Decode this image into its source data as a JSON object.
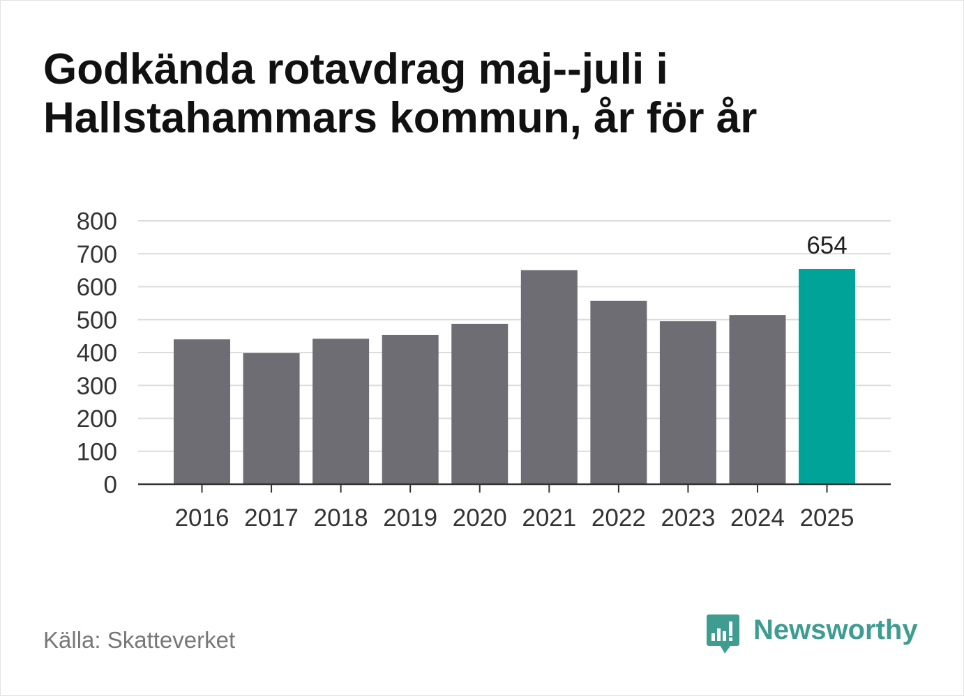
{
  "chart_data": {
    "type": "bar",
    "title": "Godkända rotavdrag maj--juli i Hallstahammars kommun, år för år",
    "categories": [
      "2016",
      "2017",
      "2018",
      "2019",
      "2020",
      "2021",
      "2022",
      "2023",
      "2024",
      "2025"
    ],
    "values": [
      440,
      398,
      442,
      453,
      487,
      650,
      557,
      495,
      514,
      654
    ],
    "ylim": [
      0,
      800
    ],
    "yticks": [
      0,
      100,
      200,
      300,
      400,
      500,
      600,
      700,
      800
    ],
    "grid": true,
    "legend": "none",
    "highlight_category": "2025",
    "value_labels": [
      {
        "category": "2025",
        "text": "654"
      }
    ],
    "colors": {
      "bar": "#6e6d73",
      "highlight": "#00a398",
      "grid": "#dcdcdc",
      "axis": "#333333"
    }
  },
  "source": "Källa: Skatteverket",
  "brand": {
    "name": "Newsworthy",
    "icon": "newsworthy-logo-icon",
    "color": "#3f9c90"
  }
}
